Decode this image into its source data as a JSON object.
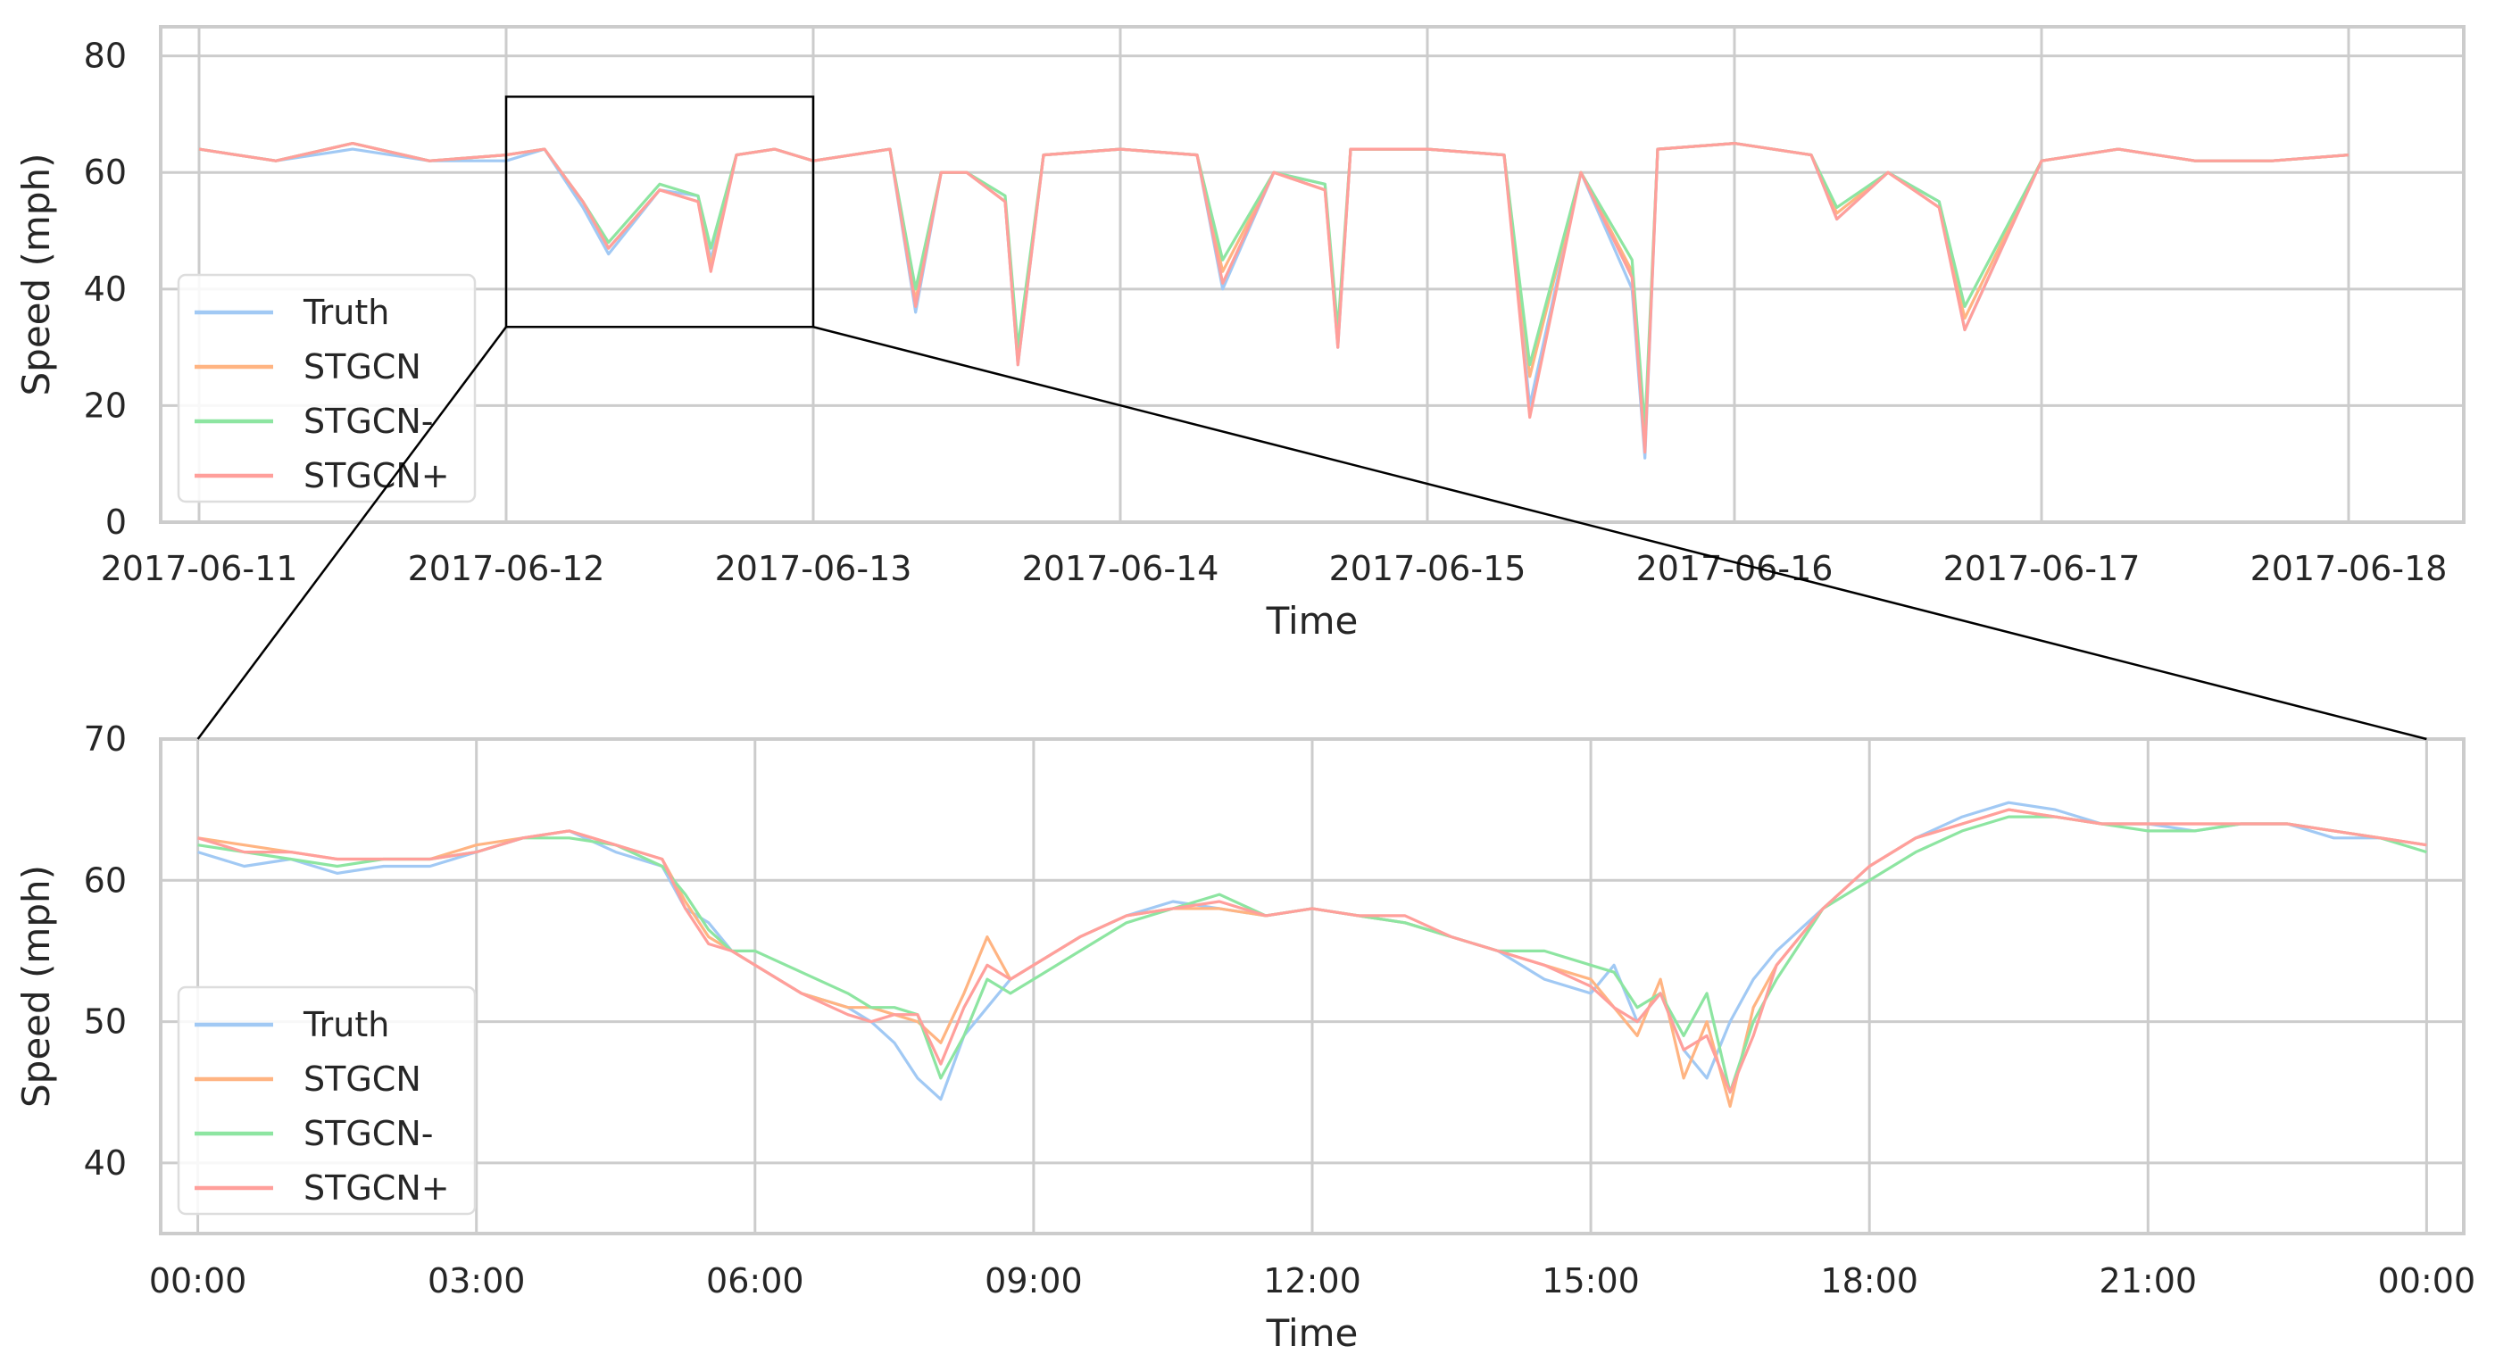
{
  "chart_data": [
    {
      "type": "line",
      "xlabel": "Time",
      "ylabel": "Speed (mph)",
      "xlim": [
        "2017-06-10T21:00",
        "2017-06-18T09:00"
      ],
      "ylim": [
        0,
        85
      ],
      "x_ticks": [
        "2017-06-11",
        "2017-06-12",
        "2017-06-13",
        "2017-06-14",
        "2017-06-15",
        "2017-06-16",
        "2017-06-17",
        "2017-06-18"
      ],
      "y_ticks": [
        "0",
        "20",
        "40",
        "60",
        "80"
      ],
      "grid": true,
      "legend": "lower-left",
      "zoom_box": {
        "x": [
          "2017-06-12T00:00",
          "2017-06-13T00:00"
        ],
        "y": [
          33.5,
          73
        ]
      },
      "x": [
        "2017-06-11T00:00",
        "2017-06-11T06:00",
        "2017-06-11T12:00",
        "2017-06-11T18:00",
        "2017-06-12T00:00",
        "2017-06-12T03:00",
        "2017-06-12T06:00",
        "2017-06-12T08:00",
        "2017-06-12T12:00",
        "2017-06-12T15:00",
        "2017-06-12T16:00",
        "2017-06-12T18:00",
        "2017-06-12T21:00",
        "2017-06-13T00:00",
        "2017-06-13T06:00",
        "2017-06-13T08:00",
        "2017-06-13T10:00",
        "2017-06-13T12:00",
        "2017-06-13T15:00",
        "2017-06-13T16:00",
        "2017-06-13T18:00",
        "2017-06-14T00:00",
        "2017-06-14T06:00",
        "2017-06-14T08:00",
        "2017-06-14T12:00",
        "2017-06-14T16:00",
        "2017-06-14T17:00",
        "2017-06-14T18:00",
        "2017-06-15T00:00",
        "2017-06-15T06:00",
        "2017-06-15T08:00",
        "2017-06-15T12:00",
        "2017-06-15T16:00",
        "2017-06-15T17:00",
        "2017-06-15T18:00",
        "2017-06-16T00:00",
        "2017-06-16T06:00",
        "2017-06-16T08:00",
        "2017-06-16T12:00",
        "2017-06-16T16:00",
        "2017-06-16T18:00",
        "2017-06-17T00:00",
        "2017-06-17T06:00",
        "2017-06-17T12:00",
        "2017-06-17T18:00",
        "2017-06-18T00:00"
      ],
      "series": [
        {
          "name": "Truth",
          "color": "#a1c9f4",
          "values": [
            64,
            62,
            64,
            62,
            62,
            64,
            54,
            46,
            57,
            56,
            45,
            63,
            64,
            62,
            64,
            36,
            60,
            60,
            55,
            27,
            63,
            64,
            63,
            40,
            60,
            58,
            30,
            64,
            64,
            63,
            20,
            60,
            40,
            11,
            64,
            65,
            63,
            52,
            60,
            55,
            33,
            62,
            64,
            62,
            62,
            63
          ]
        },
        {
          "name": "STGCN",
          "color": "#ffb482",
          "values": [
            64,
            62,
            65,
            62,
            63,
            64,
            55,
            47,
            57,
            55,
            44,
            63,
            64,
            62,
            64,
            38,
            60,
            60,
            55,
            28,
            63,
            64,
            63,
            43,
            60,
            57,
            31,
            64,
            64,
            63,
            25,
            60,
            43,
            14,
            64,
            65,
            63,
            53,
            60,
            54,
            35,
            62,
            64,
            62,
            62,
            63
          ]
        },
        {
          "name": "STGCN-",
          "color": "#8de5a1",
          "values": [
            64,
            62,
            65,
            62,
            63,
            64,
            55,
            48,
            58,
            56,
            47,
            63,
            64,
            62,
            64,
            40,
            60,
            60,
            56,
            30,
            63,
            64,
            63,
            45,
            60,
            58,
            33,
            64,
            64,
            63,
            27,
            60,
            45,
            16,
            64,
            65,
            63,
            54,
            60,
            55,
            37,
            62,
            64,
            62,
            62,
            63
          ]
        },
        {
          "name": "STGCN+",
          "color": "#ff9f9b",
          "values": [
            64,
            62,
            65,
            62,
            63,
            64,
            55,
            47,
            57,
            55,
            43,
            63,
            64,
            62,
            64,
            37,
            60,
            60,
            55,
            27,
            63,
            64,
            63,
            41,
            60,
            57,
            30,
            64,
            64,
            63,
            18,
            60,
            42,
            12,
            64,
            65,
            63,
            52,
            60,
            54,
            33,
            62,
            64,
            62,
            62,
            63
          ]
        }
      ]
    },
    {
      "type": "line",
      "xlabel": "Time",
      "ylabel": "Speed (mph)",
      "xlim": [
        -0.4,
        24.4
      ],
      "ylim": [
        35,
        70
      ],
      "x_ticks": [
        "00:00",
        "03:00",
        "06:00",
        "09:00",
        "12:00",
        "15:00",
        "18:00",
        "21:00",
        "00:00"
      ],
      "y_ticks": [
        "40",
        "50",
        "60",
        "70"
      ],
      "grid": true,
      "legend": "lower-left",
      "x": [
        0,
        0.5,
        1,
        1.5,
        2,
        2.5,
        3,
        3.5,
        4,
        4.5,
        5,
        5.25,
        5.5,
        5.75,
        6,
        6.5,
        7,
        7.25,
        7.5,
        7.75,
        8,
        8.25,
        8.5,
        8.75,
        9,
        9.5,
        10,
        10.5,
        11,
        11.5,
        12,
        12.5,
        13,
        13.5,
        14,
        14.5,
        15,
        15.25,
        15.5,
        15.75,
        16,
        16.25,
        16.5,
        16.75,
        17,
        17.5,
        18,
        18.5,
        19,
        19.5,
        20,
        20.5,
        21,
        21.5,
        22,
        22.5,
        23,
        23.5,
        24
      ],
      "series": [
        {
          "name": "Truth",
          "color": "#a1c9f4",
          "values": [
            62,
            61,
            61.5,
            60.5,
            61,
            61,
            62,
            63,
            63.5,
            62,
            61,
            58,
            57,
            55,
            54,
            52,
            51,
            50,
            48.5,
            46,
            44.5,
            49,
            51,
            53,
            54,
            56,
            57.5,
            58.5,
            58,
            57.5,
            58,
            57.5,
            57,
            56,
            55,
            53,
            52,
            54,
            50,
            52,
            48,
            46,
            50,
            53,
            55,
            58,
            61,
            63,
            64.5,
            65.5,
            65,
            64,
            64,
            63.5,
            64,
            64,
            63,
            63,
            62.5
          ]
        },
        {
          "name": "STGCN",
          "color": "#ffb482",
          "values": [
            63,
            62.5,
            62,
            61.5,
            61.5,
            61.5,
            62.5,
            63,
            63.5,
            62.5,
            61.5,
            58.5,
            56,
            55,
            54,
            52,
            51,
            51,
            50.5,
            50,
            48.5,
            52,
            56,
            53,
            54,
            56,
            57.5,
            58,
            58,
            57.5,
            58,
            57.5,
            57,
            56,
            55,
            54,
            53,
            51,
            49,
            53,
            46,
            50,
            44,
            51,
            54,
            58,
            61,
            63,
            64,
            65,
            64.5,
            64,
            64,
            64,
            64,
            64,
            63.5,
            63,
            62.5
          ]
        },
        {
          "name": "STGCN-",
          "color": "#8de5a1",
          "values": [
            62.5,
            62,
            61.5,
            61,
            61.5,
            61.5,
            62,
            63,
            63,
            62.5,
            61,
            59,
            56.5,
            55,
            55,
            53.5,
            52,
            51,
            51,
            50.5,
            46,
            49,
            53,
            52,
            53,
            55,
            57,
            58,
            59,
            57.5,
            58,
            57.5,
            57,
            56,
            55,
            55,
            54,
            53.5,
            51,
            52,
            49,
            52,
            45,
            50,
            53,
            58,
            60,
            62,
            63.5,
            64.5,
            64.5,
            64,
            63.5,
            63.5,
            64,
            64,
            63.5,
            63,
            62
          ]
        },
        {
          "name": "STGCN+",
          "color": "#ff9f9b",
          "values": [
            63,
            62,
            62,
            61.5,
            61.5,
            61.5,
            62,
            63,
            63.5,
            62.5,
            61.5,
            58,
            55.5,
            55,
            54,
            52,
            50.5,
            50,
            50.5,
            50.5,
            47,
            51,
            54,
            53,
            54,
            56,
            57.5,
            58,
            58.5,
            57.5,
            58,
            57.5,
            57.5,
            56,
            55,
            54,
            52.5,
            51,
            50,
            52,
            48,
            49,
            45,
            49,
            54,
            58,
            61,
            63,
            64,
            65,
            64.5,
            64,
            64,
            64,
            64,
            64,
            63.5,
            63,
            62.5
          ]
        }
      ]
    }
  ]
}
